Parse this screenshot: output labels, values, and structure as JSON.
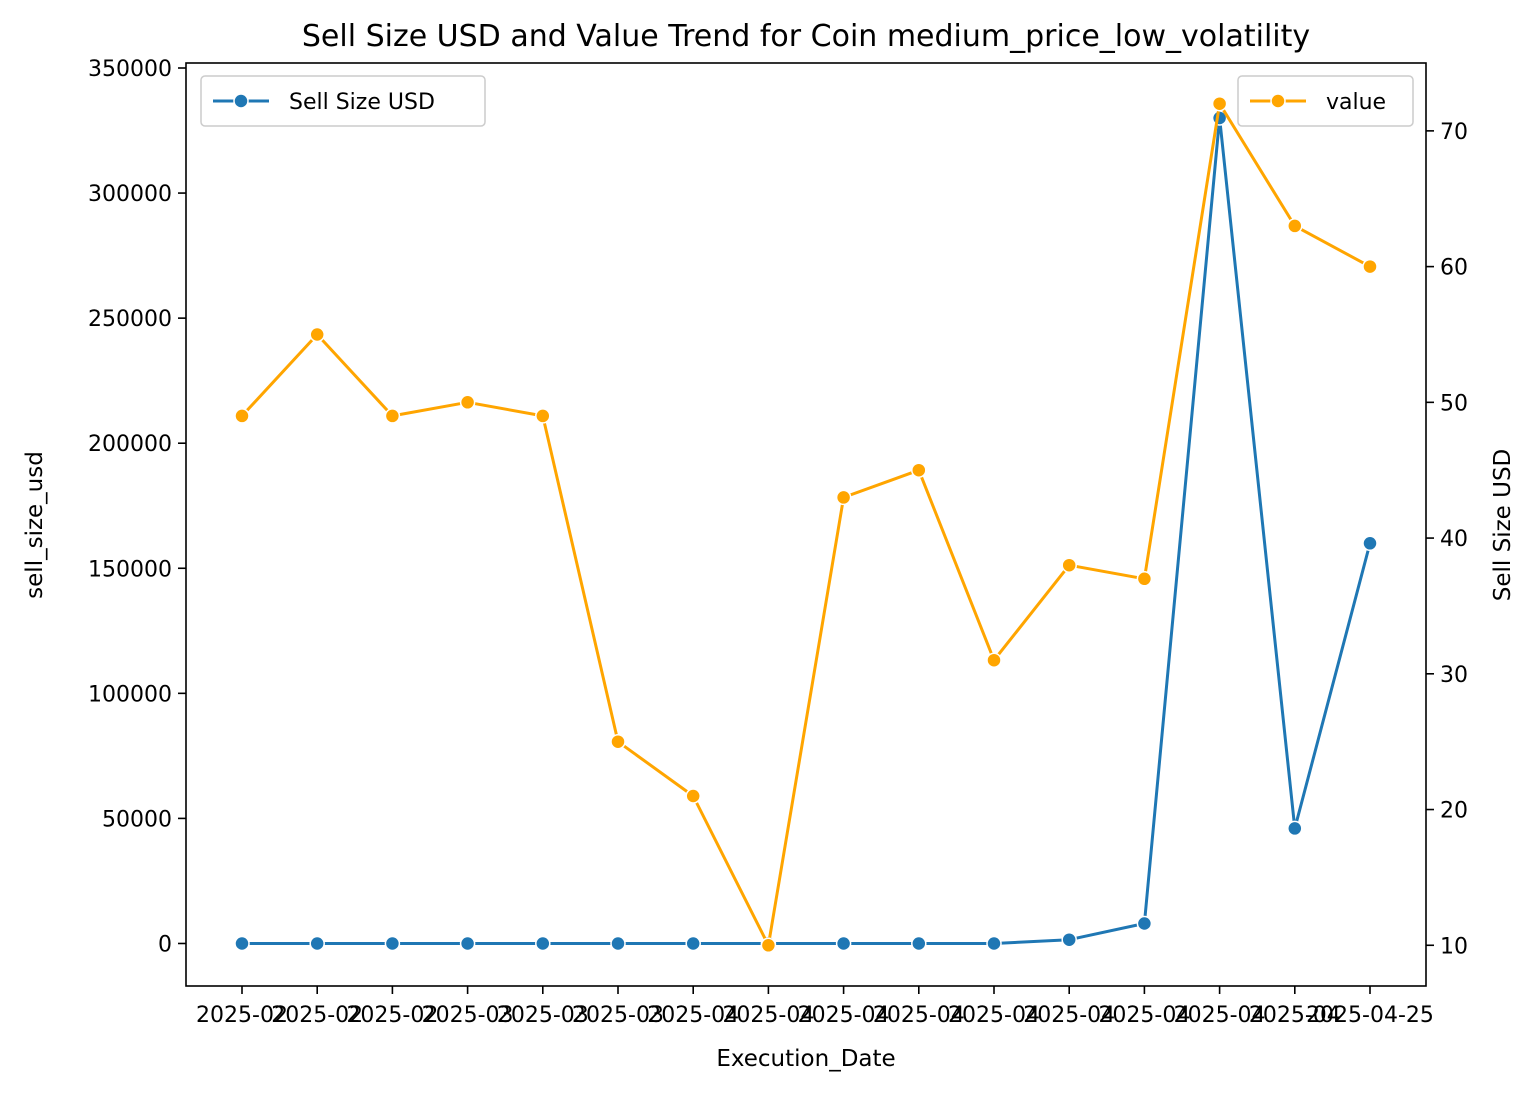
{
  "chart_data": {
    "type": "line",
    "title": "Sell Size USD and Value Trend for Coin medium_price_low_volatility",
    "xlabel": "Execution_Date",
    "ylabel": "sell_size_usd",
    "ylabel_right": "Sell Size USD",
    "x_tick_labels": [
      "2025-02",
      "2025-02",
      "2025-02",
      "2025-03",
      "2025-03",
      "2025-03",
      "2025-04",
      "2025-04",
      "2025-04",
      "2025-04",
      "2025-04",
      "2025-04",
      "2025-04",
      "2025-04",
      "2025-04",
      "2025-04-25"
    ],
    "y_left": {
      "ylim": [
        -17000,
        352000
      ],
      "ticks": [
        0,
        50000,
        100000,
        150000,
        200000,
        250000,
        300000,
        350000
      ]
    },
    "y_right": {
      "ylim": [
        7,
        75
      ],
      "ticks": [
        10,
        20,
        30,
        40,
        50,
        60,
        70
      ]
    },
    "series": [
      {
        "name": "Sell Size USD",
        "axis": "left",
        "color": "#1f77b4",
        "values": [
          0,
          0,
          0,
          0,
          0,
          0,
          0,
          0,
          0,
          0,
          0,
          1500,
          8000,
          330000,
          46000,
          160000
        ]
      },
      {
        "name": "value",
        "axis": "right",
        "color": "#ffa500",
        "values": [
          49,
          55,
          49,
          50,
          49,
          25,
          21,
          10,
          43,
          45,
          31,
          38,
          37,
          72,
          63,
          60
        ]
      }
    ],
    "legend": {
      "left_series": "top-left",
      "right_series": "top-right"
    },
    "grid": false
  }
}
